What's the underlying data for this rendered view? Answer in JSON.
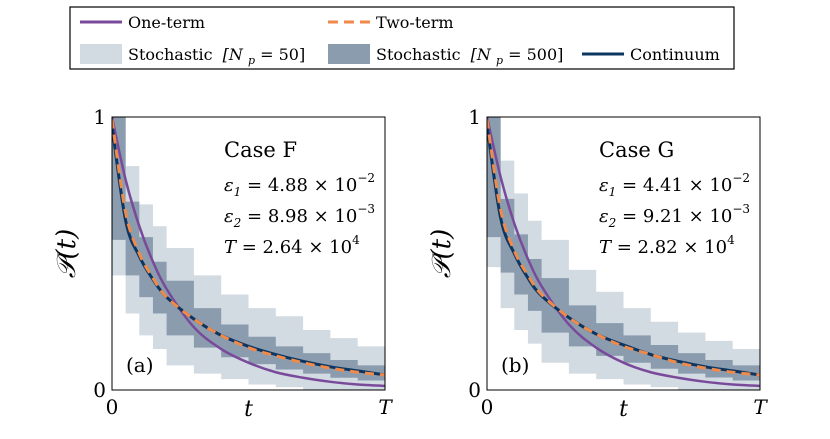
{
  "chart_data": {
    "type": "line",
    "legend": {
      "placement": "top",
      "entries": [
        {
          "id": "one_term",
          "label": "One-term",
          "color": "#7a4a9a",
          "style": "solid"
        },
        {
          "id": "two_term",
          "label": "Two-term",
          "color": "#f08a4b",
          "style": "dashed"
        },
        {
          "id": "stoch50",
          "label": "Stochastic [N_p = 50]",
          "label_text": "Stochastic",
          "label_math": "[N",
          "label_sub": "p",
          "label_tail": " = 50]",
          "color": "#d2dae2",
          "style": "band"
        },
        {
          "id": "stoch500",
          "label": "Stochastic [N_p = 500]",
          "label_text": "Stochastic",
          "label_math": "[N",
          "label_sub": "p",
          "label_tail": " = 500]",
          "color": "#8a9cae",
          "style": "band"
        },
        {
          "id": "continuum",
          "label": "Continuum",
          "color": "#0d3561",
          "style": "solid"
        }
      ]
    },
    "panels": [
      {
        "id": "a",
        "panel_label": "(a)",
        "case": "Case F",
        "params": [
          {
            "sym": "ε",
            "sub": "1",
            "eq": " = 4.88 × 10",
            "exp": "−2"
          },
          {
            "sym": "ε",
            "sub": "2",
            "eq": " = 8.98 × 10",
            "exp": "−3"
          },
          {
            "sym": "T",
            "sub": "",
            "eq": " = 2.64 × 10",
            "exp": "4"
          }
        ],
        "eps1": 0.0488,
        "eps2": 0.00898,
        "T": 26400,
        "xlabel": "t",
        "ylabel": "𝒫(t)",
        "xticks": [
          "0",
          "T"
        ],
        "yticks": [
          "1",
          "0"
        ],
        "xlim": [
          0,
          1
        ],
        "ylim": [
          0,
          1
        ],
        "series": {
          "t": [
            0,
            0.05,
            0.1,
            0.15,
            0.2,
            0.3,
            0.4,
            0.5,
            0.6,
            0.7,
            0.8,
            0.9,
            1.0
          ],
          "one_term": [
            1.0,
            0.77,
            0.6,
            0.47,
            0.37,
            0.23,
            0.15,
            0.1,
            0.065,
            0.045,
            0.03,
            0.02,
            0.015
          ],
          "two_term": [
            0.99,
            0.65,
            0.5,
            0.41,
            0.34,
            0.26,
            0.2,
            0.155,
            0.125,
            0.1,
            0.08,
            0.065,
            0.055
          ],
          "continuum": [
            0.97,
            0.62,
            0.49,
            0.405,
            0.34,
            0.26,
            0.2,
            0.16,
            0.13,
            0.105,
            0.085,
            0.07,
            0.055
          ],
          "stoch500_upper": [
            1.0,
            0.69,
            0.56,
            0.47,
            0.4,
            0.3,
            0.24,
            0.195,
            0.16,
            0.135,
            0.11,
            0.09,
            0.075
          ],
          "stoch500_lower": [
            0.94,
            0.55,
            0.42,
            0.34,
            0.28,
            0.2,
            0.155,
            0.12,
            0.095,
            0.075,
            0.06,
            0.045,
            0.035
          ],
          "stoch50_upper": [
            1.0,
            0.82,
            0.68,
            0.6,
            0.52,
            0.42,
            0.35,
            0.3,
            0.27,
            0.22,
            0.19,
            0.16,
            0.14
          ],
          "stoch50_lower": [
            0.9,
            0.42,
            0.28,
            0.2,
            0.15,
            0.09,
            0.06,
            0.04,
            0.02,
            0.01,
            0.0,
            0.0,
            0.0
          ]
        }
      },
      {
        "id": "b",
        "panel_label": "(b)",
        "case": "Case G",
        "params": [
          {
            "sym": "ε",
            "sub": "1",
            "eq": " = 4.41 × 10",
            "exp": "−2"
          },
          {
            "sym": "ε",
            "sub": "2",
            "eq": " = 9.21 × 10",
            "exp": "−3"
          },
          {
            "sym": "T",
            "sub": "",
            "eq": " = 2.82 × 10",
            "exp": "4"
          }
        ],
        "eps1": 0.0441,
        "eps2": 0.00921,
        "T": 28200,
        "xlabel": "t",
        "ylabel": "𝒫(t)",
        "xticks": [
          "0",
          "T"
        ],
        "yticks": [
          "1",
          "0"
        ],
        "xlim": [
          0,
          1
        ],
        "ylim": [
          0,
          1
        ],
        "series": {
          "t": [
            0,
            0.05,
            0.1,
            0.15,
            0.2,
            0.3,
            0.4,
            0.5,
            0.6,
            0.7,
            0.8,
            0.9,
            1.0
          ],
          "one_term": [
            1.0,
            0.78,
            0.61,
            0.48,
            0.38,
            0.24,
            0.155,
            0.1,
            0.065,
            0.045,
            0.03,
            0.02,
            0.015
          ],
          "two_term": [
            0.99,
            0.66,
            0.51,
            0.42,
            0.35,
            0.265,
            0.205,
            0.16,
            0.13,
            0.1,
            0.08,
            0.065,
            0.055
          ],
          "continuum": [
            0.97,
            0.63,
            0.5,
            0.41,
            0.345,
            0.265,
            0.205,
            0.165,
            0.13,
            0.105,
            0.085,
            0.07,
            0.055
          ],
          "stoch500_upper": [
            1.0,
            0.7,
            0.57,
            0.48,
            0.41,
            0.31,
            0.245,
            0.2,
            0.165,
            0.135,
            0.11,
            0.09,
            0.075
          ],
          "stoch500_lower": [
            0.94,
            0.56,
            0.43,
            0.35,
            0.29,
            0.21,
            0.16,
            0.125,
            0.1,
            0.078,
            0.06,
            0.046,
            0.035
          ],
          "stoch50_upper": [
            1.0,
            0.84,
            0.72,
            0.62,
            0.55,
            0.44,
            0.36,
            0.3,
            0.25,
            0.21,
            0.18,
            0.15,
            0.13
          ],
          "stoch50_lower": [
            0.9,
            0.45,
            0.3,
            0.22,
            0.17,
            0.1,
            0.06,
            0.04,
            0.02,
            0.01,
            0.0,
            0.0,
            0.0
          ]
        }
      }
    ]
  }
}
